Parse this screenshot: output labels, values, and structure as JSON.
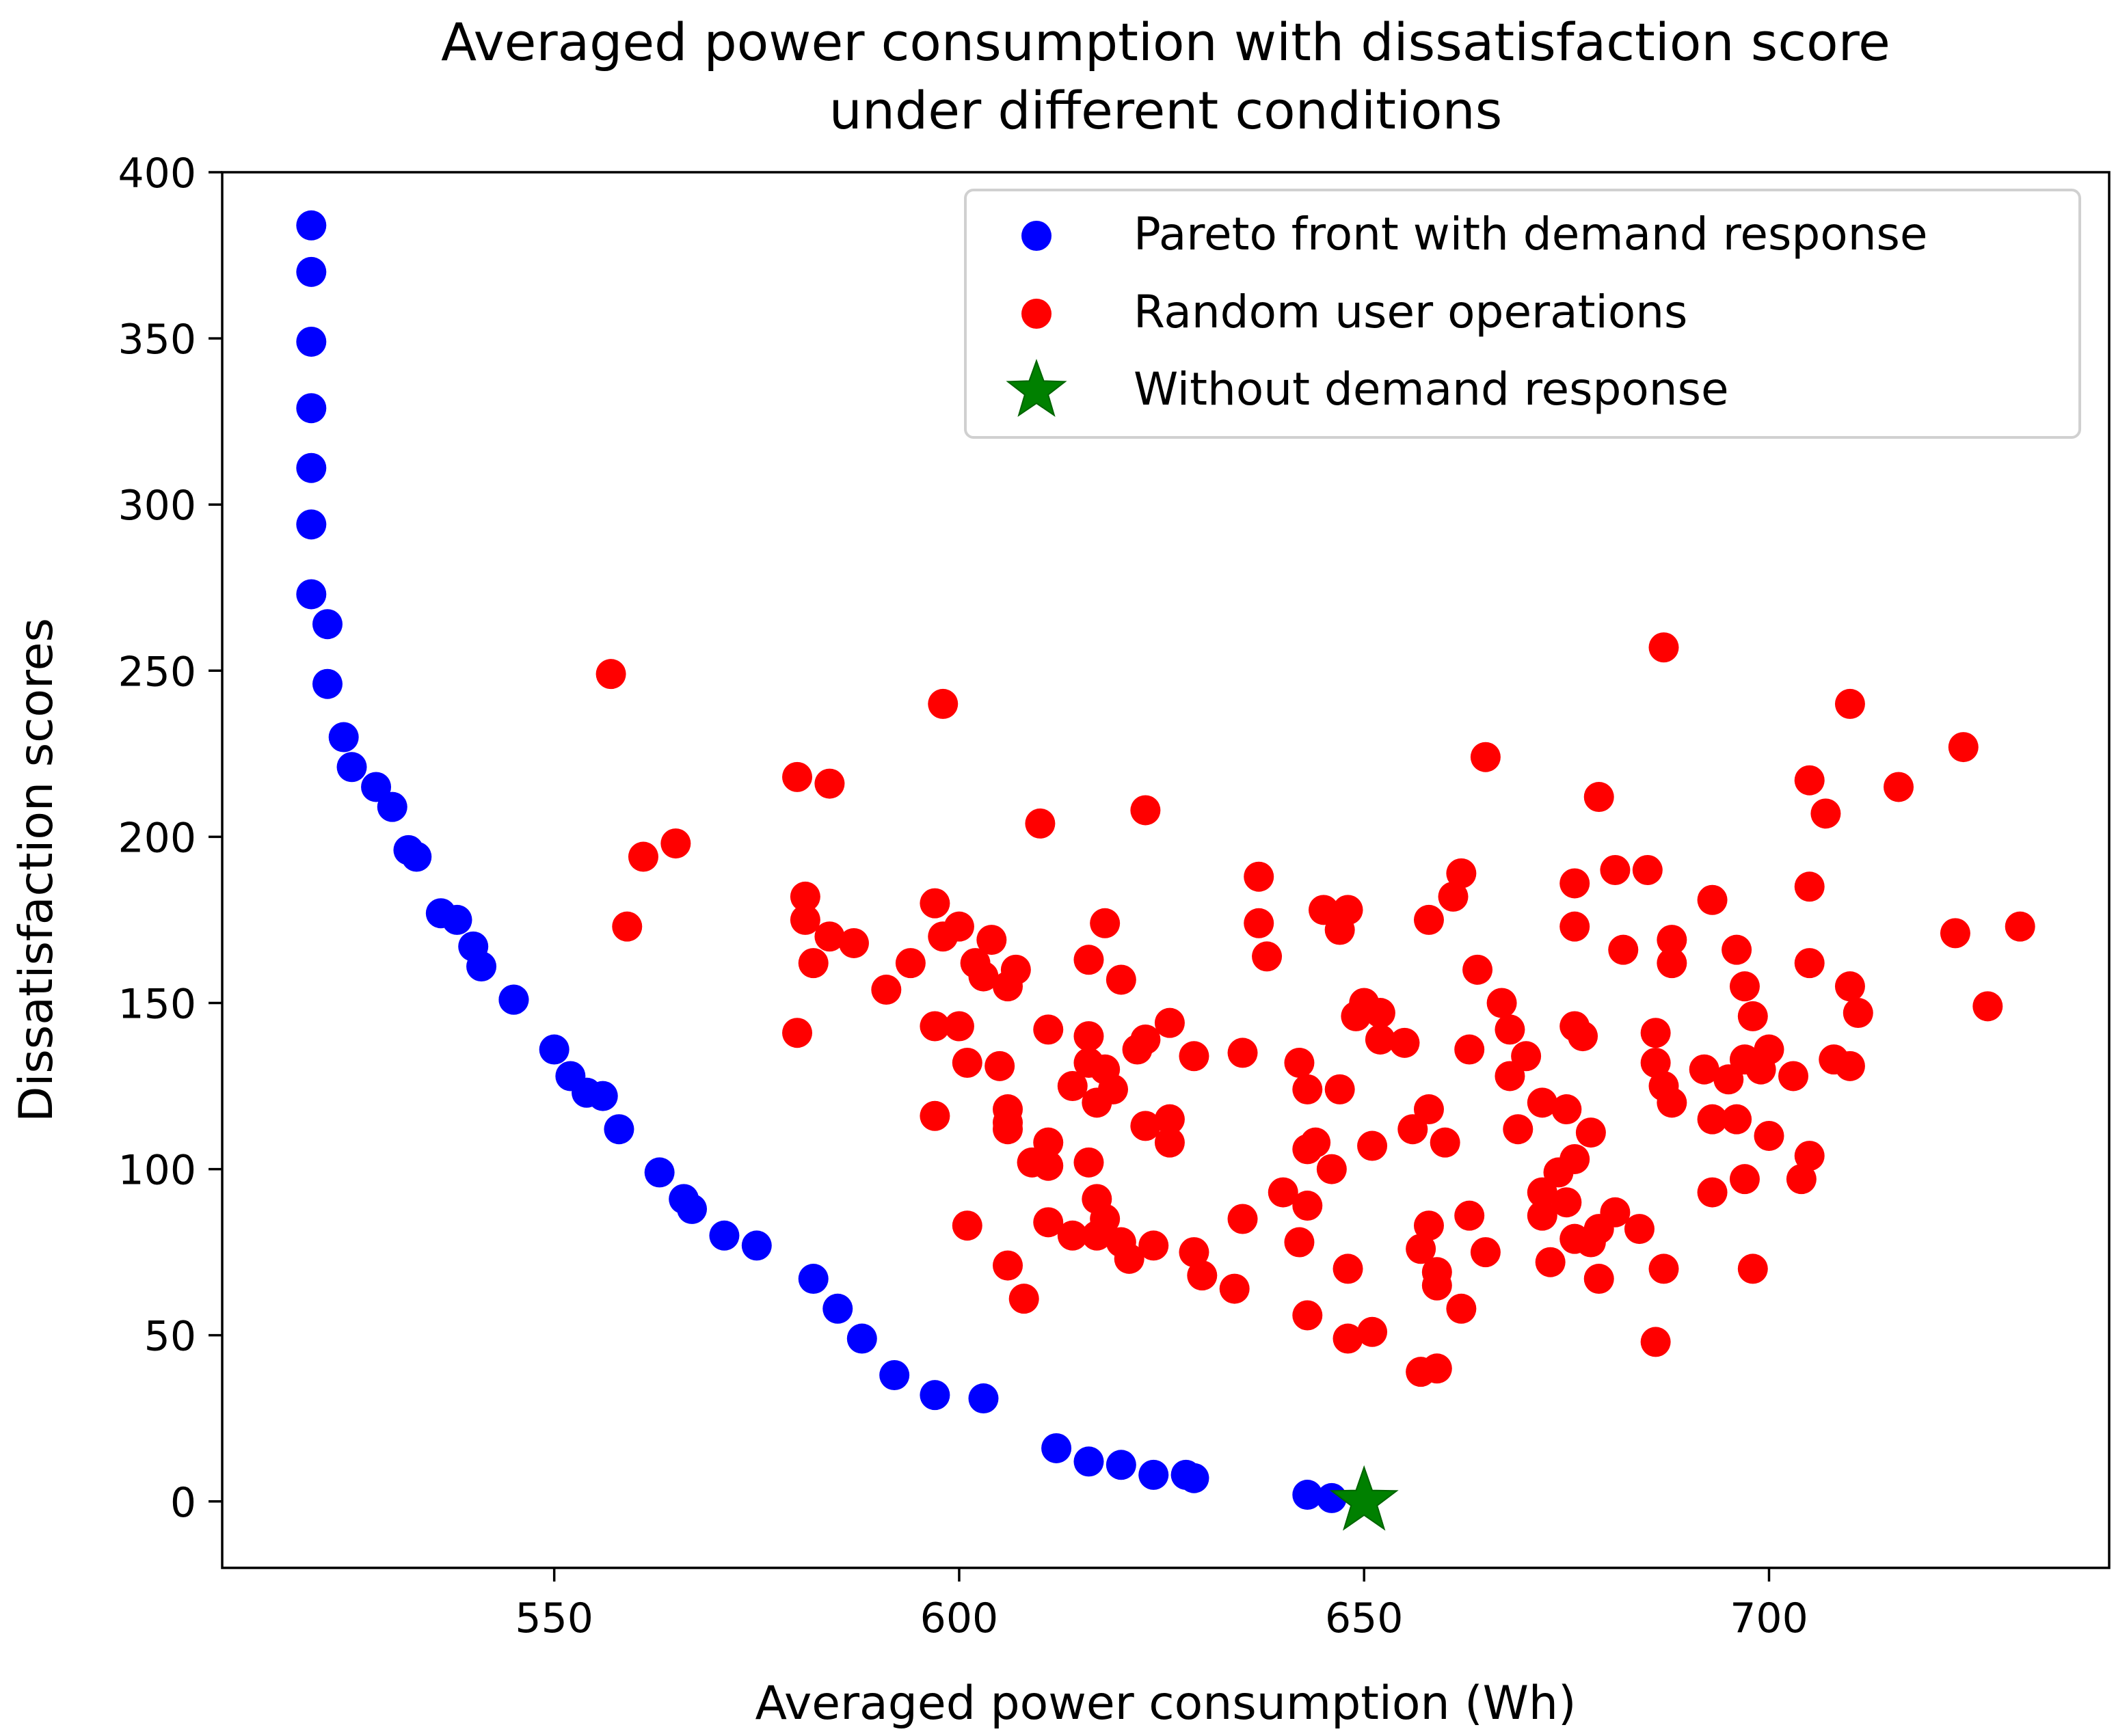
{
  "chart_data": {
    "type": "scatter",
    "title": [
      "Averaged power consumption with dissatisfaction score",
      "under different conditions"
    ],
    "xlabel": "Averaged power consumption (Wh)",
    "ylabel": "Dissatisfaction scores",
    "xlim": [
      509,
      742
    ],
    "ylim": [
      -20,
      400
    ],
    "xticks": [
      550,
      600,
      650,
      700
    ],
    "yticks": [
      0,
      50,
      100,
      150,
      200,
      250,
      300,
      350,
      400
    ],
    "grid": false,
    "legend_position": "upper-right",
    "series": [
      {
        "name": "Pareto front with demand response",
        "marker": "circle",
        "color": "#0000ff",
        "points": [
          [
            520,
            384
          ],
          [
            520,
            370
          ],
          [
            520,
            349
          ],
          [
            520,
            329
          ],
          [
            520,
            311
          ],
          [
            520,
            294
          ],
          [
            520,
            273
          ],
          [
            522,
            264
          ],
          [
            522,
            246
          ],
          [
            524,
            230
          ],
          [
            525,
            221
          ],
          [
            528,
            215
          ],
          [
            530,
            209
          ],
          [
            532,
            196
          ],
          [
            533,
            194
          ],
          [
            536,
            177
          ],
          [
            538,
            175
          ],
          [
            540,
            167
          ],
          [
            541,
            161
          ],
          [
            545,
            151
          ],
          [
            545,
            151
          ],
          [
            550,
            136
          ],
          [
            552,
            128
          ],
          [
            554,
            123
          ],
          [
            556,
            122
          ],
          [
            558,
            112
          ],
          [
            563,
            99
          ],
          [
            566,
            91
          ],
          [
            567,
            88
          ],
          [
            571,
            80
          ],
          [
            575,
            77
          ],
          [
            582,
            67
          ],
          [
            585,
            58
          ],
          [
            588,
            49
          ],
          [
            592,
            38
          ],
          [
            597,
            32
          ],
          [
            603,
            31
          ],
          [
            612,
            16
          ],
          [
            616,
            12
          ],
          [
            620,
            11
          ],
          [
            624,
            8
          ],
          [
            628,
            8
          ],
          [
            629,
            7
          ],
          [
            643,
            2
          ],
          [
            646,
            1
          ]
        ]
      },
      {
        "name": "Random user operations",
        "marker": "circle",
        "color": "#ff0000",
        "points": [
          [
            557,
            249
          ],
          [
            598,
            240
          ],
          [
            687,
            257
          ],
          [
            710,
            240
          ],
          [
            724,
            227
          ],
          [
            665,
            224
          ],
          [
            580,
            218
          ],
          [
            584,
            216
          ],
          [
            705,
            217
          ],
          [
            716,
            215
          ],
          [
            679,
            212
          ],
          [
            707,
            207
          ],
          [
            610,
            204
          ],
          [
            623,
            208
          ],
          [
            561,
            194
          ],
          [
            565,
            198
          ],
          [
            637,
            188
          ],
          [
            662,
            189
          ],
          [
            681,
            190
          ],
          [
            685,
            190
          ],
          [
            559,
            173
          ],
          [
            581,
            182
          ],
          [
            581,
            175
          ],
          [
            582,
            162
          ],
          [
            584,
            170
          ],
          [
            587,
            168
          ],
          [
            594,
            162
          ],
          [
            591,
            154
          ],
          [
            597,
            180
          ],
          [
            598,
            170
          ],
          [
            600,
            173
          ],
          [
            602,
            162
          ],
          [
            603,
            158
          ],
          [
            604,
            169
          ],
          [
            606,
            155
          ],
          [
            607,
            160
          ],
          [
            618,
            174
          ],
          [
            616,
            163
          ],
          [
            620,
            157
          ],
          [
            637,
            174
          ],
          [
            638,
            164
          ],
          [
            645,
            178
          ],
          [
            648,
            178
          ],
          [
            647,
            172
          ],
          [
            658,
            175
          ],
          [
            661,
            182
          ],
          [
            664,
            160
          ],
          [
            676,
            186
          ],
          [
            676,
            173
          ],
          [
            682,
            166
          ],
          [
            688,
            169
          ],
          [
            688,
            162
          ],
          [
            693,
            181
          ],
          [
            696,
            166
          ],
          [
            697,
            155
          ],
          [
            705,
            185
          ],
          [
            705,
            162
          ],
          [
            710,
            155
          ],
          [
            723,
            171
          ],
          [
            731,
            173
          ],
          [
            727,
            149
          ],
          [
            711,
            147
          ],
          [
            580,
            141
          ],
          [
            597,
            143
          ],
          [
            600,
            143
          ],
          [
            601,
            132
          ],
          [
            605,
            131
          ],
          [
            606,
            118
          ],
          [
            606,
            112
          ],
          [
            609,
            102
          ],
          [
            611,
            142
          ],
          [
            611,
            108
          ],
          [
            614,
            125
          ],
          [
            616,
            132
          ],
          [
            616,
            140
          ],
          [
            617,
            120
          ],
          [
            618,
            130
          ],
          [
            619,
            124
          ],
          [
            622,
            136
          ],
          [
            623,
            139
          ],
          [
            626,
            144
          ],
          [
            629,
            134
          ],
          [
            635,
            135
          ],
          [
            642,
            132
          ],
          [
            643,
            124
          ],
          [
            647,
            124
          ],
          [
            649,
            146
          ],
          [
            650,
            150
          ],
          [
            652,
            147
          ],
          [
            652,
            139
          ],
          [
            655,
            138
          ],
          [
            663,
            136
          ],
          [
            667,
            150
          ],
          [
            668,
            142
          ],
          [
            670,
            134
          ],
          [
            668,
            128
          ],
          [
            676,
            143
          ],
          [
            677,
            140
          ],
          [
            686,
            141
          ],
          [
            686,
            132
          ],
          [
            687,
            125
          ],
          [
            688,
            120
          ],
          [
            692,
            130
          ],
          [
            695,
            127
          ],
          [
            697,
            133
          ],
          [
            698,
            146
          ],
          [
            700,
            136
          ],
          [
            699,
            130
          ],
          [
            703,
            128
          ],
          [
            708,
            133
          ],
          [
            710,
            131
          ],
          [
            597,
            116
          ],
          [
            606,
            114
          ],
          [
            611,
            101
          ],
          [
            616,
            102
          ],
          [
            623,
            113
          ],
          [
            626,
            115
          ],
          [
            626,
            108
          ],
          [
            643,
            106
          ],
          [
            644,
            108
          ],
          [
            646,
            100
          ],
          [
            651,
            107
          ],
          [
            656,
            112
          ],
          [
            658,
            118
          ],
          [
            660,
            108
          ],
          [
            669,
            112
          ],
          [
            672,
            120
          ],
          [
            675,
            118
          ],
          [
            678,
            111
          ],
          [
            676,
            103
          ],
          [
            674,
            99
          ],
          [
            672,
            93
          ],
          [
            675,
            90
          ],
          [
            672,
            86
          ],
          [
            693,
            115
          ],
          [
            696,
            115
          ],
          [
            700,
            110
          ],
          [
            705,
            104
          ],
          [
            704,
            97
          ],
          [
            697,
            97
          ],
          [
            693,
            93
          ],
          [
            601,
            83
          ],
          [
            611,
            84
          ],
          [
            614,
            80
          ],
          [
            617,
            80
          ],
          [
            617,
            91
          ],
          [
            618,
            85
          ],
          [
            620,
            78
          ],
          [
            621,
            73
          ],
          [
            624,
            77
          ],
          [
            629,
            75
          ],
          [
            630,
            68
          ],
          [
            635,
            85
          ],
          [
            634,
            64
          ],
          [
            640,
            93
          ],
          [
            643,
            89
          ],
          [
            642,
            78
          ],
          [
            658,
            83
          ],
          [
            657,
            76
          ],
          [
            659,
            69
          ],
          [
            659,
            65
          ],
          [
            663,
            86
          ],
          [
            665,
            75
          ],
          [
            673,
            72
          ],
          [
            676,
            79
          ],
          [
            679,
            82
          ],
          [
            678,
            78
          ],
          [
            679,
            67
          ],
          [
            681,
            87
          ],
          [
            684,
            82
          ],
          [
            687,
            70
          ],
          [
            698,
            70
          ],
          [
            606,
            71
          ],
          [
            608,
            61
          ],
          [
            643,
            56
          ],
          [
            648,
            70
          ],
          [
            648,
            49
          ],
          [
            651,
            51
          ],
          [
            657,
            39
          ],
          [
            659,
            40
          ],
          [
            662,
            58
          ],
          [
            686,
            48
          ]
        ]
      },
      {
        "name": "Without demand response",
        "marker": "star",
        "color": "#008000",
        "points": [
          [
            650,
            0
          ]
        ]
      }
    ]
  }
}
